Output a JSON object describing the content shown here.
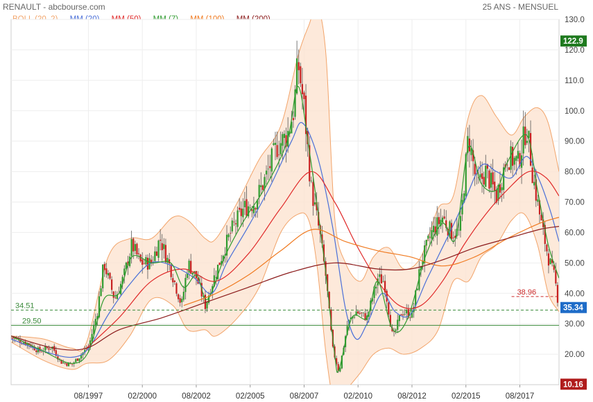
{
  "header": {
    "title": "RENAULT - abcbourse.com",
    "period": "25 ANS - MENSUEL"
  },
  "legend": [
    {
      "label": "BOLL (20, 2)",
      "color": "#f2a46a"
    },
    {
      "label": "MM (20)",
      "color": "#4a6fd8"
    },
    {
      "label": "MM (50)",
      "color": "#e02a2a"
    },
    {
      "label": "MM (7)",
      "color": "#2e9a2e"
    },
    {
      "label": "MM (100)",
      "color": "#f07a20"
    },
    {
      "label": "MM (200)",
      "color": "#8b1a1a"
    }
  ],
  "chart_data": {
    "type": "line",
    "title": "",
    "ylim": [
      10,
      130
    ],
    "y_ticks": [
      "20.00",
      "30.00",
      "40.00",
      "50.00",
      "60.00",
      "70.00",
      "80.00",
      "90.00",
      "100.0",
      "110.0",
      "120.0",
      "130.0"
    ],
    "x_ticks": [
      "08/1997",
      "02/2000",
      "08/2002",
      "02/2005",
      "08/2007",
      "02/2010",
      "08/2012",
      "02/2015",
      "08/2017"
    ],
    "x_range": [
      1994.0,
      2019.4
    ],
    "price": [
      [
        1994.0,
        25.5
      ],
      [
        1994.8,
        23.5
      ],
      [
        1995.3,
        21.0
      ],
      [
        1995.9,
        22.5
      ],
      [
        1996.3,
        17.5
      ],
      [
        1996.8,
        16.5
      ],
      [
        1997.2,
        19.5
      ],
      [
        1997.6,
        22.5
      ],
      [
        1998.0,
        34.0
      ],
      [
        1998.3,
        50.0
      ],
      [
        1998.8,
        38.0
      ],
      [
        1999.2,
        45.0
      ],
      [
        1999.6,
        56.0
      ],
      [
        2000.0,
        50.0
      ],
      [
        2000.5,
        50.0
      ],
      [
        2000.9,
        58.0
      ],
      [
        2001.4,
        48.0
      ],
      [
        2001.9,
        36.0
      ],
      [
        2002.2,
        50.0
      ],
      [
        2002.6,
        45.0
      ],
      [
        2003.0,
        36.0
      ],
      [
        2003.4,
        45.0
      ],
      [
        2003.9,
        55.0
      ],
      [
        2004.3,
        62.0
      ],
      [
        2004.8,
        68.0
      ],
      [
        2005.3,
        70.0
      ],
      [
        2005.8,
        78.0
      ],
      [
        2006.3,
        88.0
      ],
      [
        2006.8,
        92.0
      ],
      [
        2007.1,
        100.0
      ],
      [
        2007.3,
        116.0
      ],
      [
        2007.6,
        100.0
      ],
      [
        2007.9,
        75.0
      ],
      [
        2008.3,
        60.0
      ],
      [
        2008.6,
        45.0
      ],
      [
        2008.9,
        22.0
      ],
      [
        2009.2,
        14.0
      ],
      [
        2009.6,
        30.0
      ],
      [
        2010.0,
        34.0
      ],
      [
        2010.5,
        32.0
      ],
      [
        2011.0,
        45.0
      ],
      [
        2011.3,
        44.0
      ],
      [
        2011.7,
        25.0
      ],
      [
        2012.1,
        34.0
      ],
      [
        2012.6,
        33.0
      ],
      [
        2013.0,
        50.0
      ],
      [
        2013.5,
        60.0
      ],
      [
        2014.0,
        65.0
      ],
      [
        2014.4,
        60.0
      ],
      [
        2014.8,
        60.0
      ],
      [
        2015.2,
        92.0
      ],
      [
        2015.6,
        75.0
      ],
      [
        2016.0,
        80.0
      ],
      [
        2016.5,
        72.0
      ],
      [
        2017.0,
        85.0
      ],
      [
        2017.5,
        83.0
      ],
      [
        2017.9,
        95.0
      ],
      [
        2018.2,
        78.0
      ],
      [
        2018.6,
        62.0
      ],
      [
        2018.9,
        52.0
      ],
      [
        2019.2,
        45.0
      ],
      [
        2019.4,
        35.34
      ]
    ],
    "series": [
      {
        "name": "MM (20)",
        "color": "#4a6fd8",
        "points": [
          [
            1994.0,
            25
          ],
          [
            1995.5,
            21
          ],
          [
            1996.8,
            19
          ],
          [
            1997.6,
            22
          ],
          [
            1998.5,
            33
          ],
          [
            1999.5,
            43
          ],
          [
            2000.5,
            50
          ],
          [
            2001.5,
            49
          ],
          [
            2002.5,
            45
          ],
          [
            2003.3,
            40
          ],
          [
            2004.0,
            50
          ],
          [
            2005.0,
            62
          ],
          [
            2006.0,
            75
          ],
          [
            2007.0,
            90
          ],
          [
            2007.5,
            96
          ],
          [
            2008.2,
            85
          ],
          [
            2008.9,
            62
          ],
          [
            2009.5,
            35
          ],
          [
            2010.0,
            25
          ],
          [
            2010.5,
            30
          ],
          [
            2011.2,
            40
          ],
          [
            2011.8,
            34
          ],
          [
            2012.5,
            33
          ],
          [
            2013.3,
            45
          ],
          [
            2014.2,
            58
          ],
          [
            2015.0,
            70
          ],
          [
            2015.8,
            82
          ],
          [
            2016.5,
            80
          ],
          [
            2017.2,
            78
          ],
          [
            2017.9,
            85
          ],
          [
            2018.5,
            77
          ],
          [
            2019.0,
            67
          ],
          [
            2019.4,
            57
          ]
        ]
      },
      {
        "name": "MM (50)",
        "color": "#e02a2a",
        "points": [
          [
            1997.5,
            22
          ],
          [
            1999.0,
            32
          ],
          [
            2000.5,
            44
          ],
          [
            2002.0,
            48
          ],
          [
            2003.5,
            44
          ],
          [
            2005.0,
            53
          ],
          [
            2006.5,
            68
          ],
          [
            2007.9,
            80
          ],
          [
            2009.0,
            70
          ],
          [
            2010.0,
            56
          ],
          [
            2011.0,
            44
          ],
          [
            2012.0,
            36
          ],
          [
            2013.0,
            36
          ],
          [
            2014.0,
            44
          ],
          [
            2015.0,
            56
          ],
          [
            2016.0,
            66
          ],
          [
            2017.0,
            74
          ],
          [
            2018.0,
            80
          ],
          [
            2018.8,
            78
          ],
          [
            2019.4,
            72
          ]
        ]
      },
      {
        "name": "MM (7)",
        "color": "#2e9a2e",
        "points": [
          [
            1994.0,
            26
          ],
          [
            1995.5,
            21
          ],
          [
            1996.8,
            17
          ],
          [
            1997.6,
            21
          ],
          [
            1998.3,
            38
          ],
          [
            1999.0,
            40
          ],
          [
            1999.6,
            52
          ],
          [
            2000.5,
            50
          ],
          [
            2001.4,
            50
          ],
          [
            2002.0,
            42
          ],
          [
            2002.6,
            46
          ],
          [
            2003.1,
            38
          ],
          [
            2003.9,
            52
          ],
          [
            2004.8,
            64
          ],
          [
            2005.8,
            75
          ],
          [
            2006.8,
            90
          ],
          [
            2007.3,
            108
          ],
          [
            2007.8,
            88
          ],
          [
            2008.5,
            52
          ],
          [
            2009.0,
            20
          ],
          [
            2009.2,
            15
          ],
          [
            2009.8,
            32
          ],
          [
            2010.5,
            32
          ],
          [
            2011.0,
            44
          ],
          [
            2011.7,
            28
          ],
          [
            2012.4,
            32
          ],
          [
            2013.2,
            52
          ],
          [
            2014.0,
            63
          ],
          [
            2014.6,
            58
          ],
          [
            2015.2,
            88
          ],
          [
            2015.8,
            76
          ],
          [
            2016.5,
            74
          ],
          [
            2017.0,
            83
          ],
          [
            2017.9,
            92
          ],
          [
            2018.4,
            74
          ],
          [
            2018.9,
            56
          ],
          [
            2019.4,
            45
          ]
        ]
      },
      {
        "name": "MM (100)",
        "color": "#f07a20",
        "points": [
          [
            2002.0,
            36
          ],
          [
            2003.5,
            40
          ],
          [
            2005.0,
            46
          ],
          [
            2006.5,
            54
          ],
          [
            2008.0,
            61
          ],
          [
            2009.5,
            57
          ],
          [
            2011.0,
            54
          ],
          [
            2012.5,
            52
          ],
          [
            2014.0,
            49
          ],
          [
            2015.5,
            52
          ],
          [
            2017.0,
            58
          ],
          [
            2018.5,
            63
          ],
          [
            2019.4,
            65
          ]
        ]
      },
      {
        "name": "MM (200)",
        "color": "#8b1a1a",
        "points": [
          [
            1994.0,
            26
          ],
          [
            1996.0,
            22
          ],
          [
            1997.5,
            22
          ],
          [
            1999.0,
            28
          ],
          [
            2001.0,
            32
          ],
          [
            2003.0,
            37
          ],
          [
            2005.0,
            42
          ],
          [
            2007.0,
            47
          ],
          [
            2009.0,
            50
          ],
          [
            2011.0,
            48
          ],
          [
            2012.5,
            48
          ],
          [
            2014.0,
            51
          ],
          [
            2015.5,
            55
          ],
          [
            2017.0,
            58
          ],
          [
            2018.5,
            61
          ],
          [
            2019.4,
            62
          ]
        ]
      }
    ],
    "bollinger": {
      "name": "BOLL (20, 2)",
      "color": "#f2a46a",
      "upper": [
        [
          1994.0,
          26
        ],
        [
          1995.5,
          25
        ],
        [
          1996.8,
          22
        ],
        [
          1997.5,
          24
        ],
        [
          1998.5,
          52
        ],
        [
          1999.5,
          58
        ],
        [
          2000.5,
          58
        ],
        [
          2001.5,
          65
        ],
        [
          2002.2,
          64
        ],
        [
          2003.0,
          58
        ],
        [
          2003.5,
          58
        ],
        [
          2004.5,
          70
        ],
        [
          2005.5,
          84
        ],
        [
          2006.5,
          95
        ],
        [
          2007.3,
          118
        ],
        [
          2007.8,
          128
        ],
        [
          2008.2,
          134
        ],
        [
          2008.6,
          118
        ],
        [
          2009.0,
          65
        ],
        [
          2009.5,
          50
        ],
        [
          2010.2,
          44
        ],
        [
          2010.8,
          52
        ],
        [
          2011.5,
          55
        ],
        [
          2012.2,
          48
        ],
        [
          2013.0,
          52
        ],
        [
          2013.8,
          68
        ],
        [
          2014.5,
          72
        ],
        [
          2015.2,
          98
        ],
        [
          2015.8,
          105
        ],
        [
          2016.5,
          98
        ],
        [
          2017.2,
          92
        ],
        [
          2017.8,
          98
        ],
        [
          2018.4,
          101
        ],
        [
          2018.9,
          96
        ],
        [
          2019.4,
          80
        ]
      ],
      "lower": [
        [
          1994.0,
          24
        ],
        [
          1995.5,
          18
        ],
        [
          1996.8,
          15
        ],
        [
          1997.5,
          17
        ],
        [
          1998.5,
          18
        ],
        [
          1999.5,
          26
        ],
        [
          2000.5,
          38
        ],
        [
          2001.5,
          36
        ],
        [
          2002.2,
          28
        ],
        [
          2003.0,
          28
        ],
        [
          2003.5,
          26
        ],
        [
          2004.5,
          32
        ],
        [
          2005.5,
          42
        ],
        [
          2006.5,
          60
        ],
        [
          2007.3,
          66
        ],
        [
          2007.8,
          64
        ],
        [
          2008.2,
          48
        ],
        [
          2008.6,
          20
        ],
        [
          2009.0,
          4
        ],
        [
          2009.5,
          8
        ],
        [
          2010.2,
          14
        ],
        [
          2010.8,
          20
        ],
        [
          2011.5,
          22
        ],
        [
          2012.2,
          20
        ],
        [
          2013.0,
          22
        ],
        [
          2013.8,
          28
        ],
        [
          2014.5,
          44
        ],
        [
          2015.2,
          44
        ],
        [
          2015.8,
          52
        ],
        [
          2016.5,
          56
        ],
        [
          2017.2,
          64
        ],
        [
          2017.8,
          66
        ],
        [
          2018.4,
          56
        ],
        [
          2018.9,
          40
        ],
        [
          2019.4,
          34
        ]
      ]
    },
    "levels": [
      {
        "value": 34.51,
        "label": "34.51",
        "style": "dashed",
        "color": "#3a8a3a",
        "x_from": 1994.0
      },
      {
        "value": 29.5,
        "label": "29.50",
        "style": "solid",
        "color": "#3a8a3a",
        "x_from": 1994.0
      },
      {
        "value": 38.96,
        "label": "38.96",
        "style": "dashed",
        "color": "#cc2a2a",
        "x_from": 2017.2
      }
    ],
    "price_tags": [
      {
        "value": 122.9,
        "label": "122.9",
        "color": "#1f7a1f"
      },
      {
        "value": 35.34,
        "label": "35.34",
        "color": "#1e6cc8"
      },
      {
        "value": 10.16,
        "label": "10.16",
        "color": "#b01c1c"
      }
    ],
    "candle_colors": {
      "up": "#2e9a2e",
      "down": "#c62020"
    }
  }
}
